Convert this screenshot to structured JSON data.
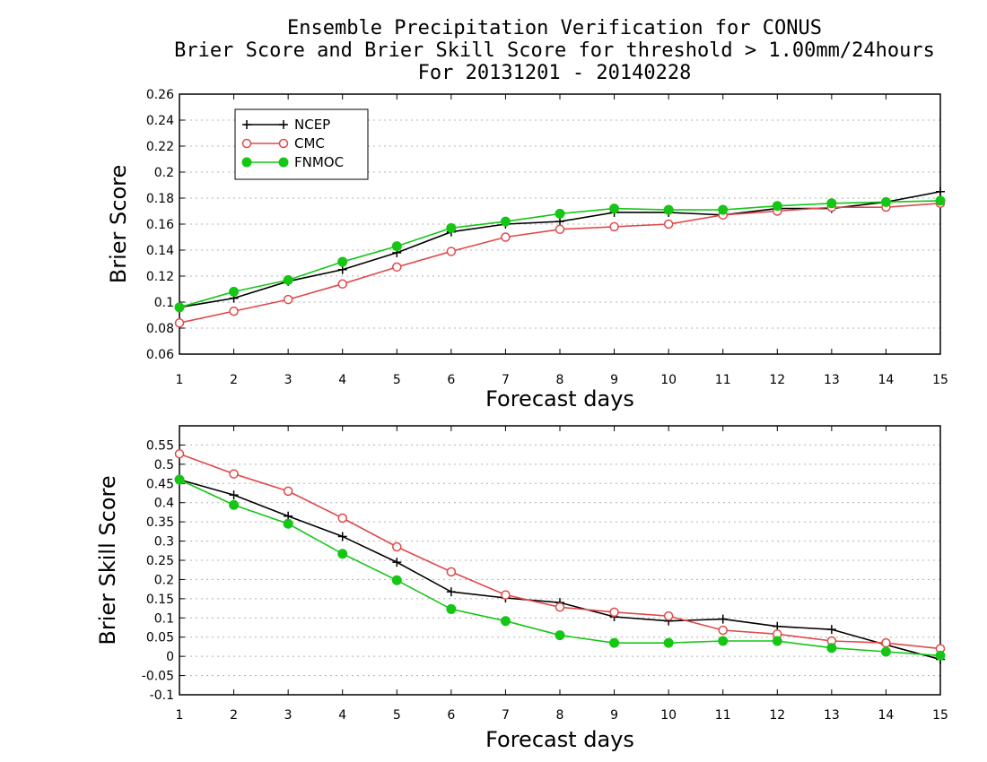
{
  "title_lines": [
    "Ensemble Precipitation Verification for CONUS",
    "Brier Score and Brier Skill Score for threshold > 1.00mm/24hours",
    "For 20131201 - 20140228"
  ],
  "colors": {
    "NCEP": "#000000",
    "CMC": "#e0494b",
    "FNMOC": "#15c615"
  },
  "chart_data": [
    {
      "type": "line",
      "xlabel": "Forecast days",
      "ylabel": "Brier Score",
      "x": [
        1,
        2,
        3,
        4,
        5,
        6,
        7,
        8,
        9,
        10,
        11,
        12,
        13,
        14,
        15
      ],
      "xlim": [
        1,
        15
      ],
      "ylim": [
        0.06,
        0.26
      ],
      "yticks": [
        0.06,
        0.08,
        0.1,
        0.12,
        0.14,
        0.16,
        0.18,
        0.2,
        0.22,
        0.24,
        0.26
      ],
      "ytick_labels": [
        "0.06",
        "0.08",
        "0.1",
        "0.12",
        "0.14",
        "0.16",
        "0.18",
        "0.2",
        "0.22",
        "0.24",
        "0.26"
      ],
      "grid": true,
      "legend": "top-left",
      "series": [
        {
          "name": "NCEP",
          "marker": "plus",
          "values": [
            0.096,
            0.103,
            0.116,
            0.125,
            0.138,
            0.154,
            0.16,
            0.162,
            0.169,
            0.169,
            0.167,
            0.172,
            0.172,
            0.177,
            0.185
          ]
        },
        {
          "name": "CMC",
          "marker": "open-circle",
          "values": [
            0.084,
            0.093,
            0.102,
            0.114,
            0.127,
            0.139,
            0.15,
            0.156,
            0.158,
            0.16,
            0.167,
            0.17,
            0.173,
            0.173,
            0.176
          ]
        },
        {
          "name": "FNMOC",
          "marker": "filled-circle",
          "values": [
            0.096,
            0.108,
            0.117,
            0.131,
            0.143,
            0.157,
            0.162,
            0.168,
            0.172,
            0.171,
            0.171,
            0.174,
            0.176,
            0.177,
            0.178
          ]
        }
      ]
    },
    {
      "type": "line",
      "xlabel": "Forecast days",
      "ylabel": "Brier Skill Score",
      "x": [
        1,
        2,
        3,
        4,
        5,
        6,
        7,
        8,
        9,
        10,
        11,
        12,
        13,
        14,
        15
      ],
      "xlim": [
        1,
        15
      ],
      "ylim": [
        -0.1,
        0.6
      ],
      "yticks": [
        -0.1,
        -0.05,
        0,
        0.05,
        0.1,
        0.15,
        0.2,
        0.25,
        0.3,
        0.35,
        0.4,
        0.45,
        0.5,
        0.55
      ],
      "ytick_labels": [
        "-0.1",
        "-0.05",
        "0",
        "0.05",
        "0.1",
        "0.15",
        "0.2",
        "0.25",
        "0.3",
        "0.35",
        "0.4",
        "0.45",
        "0.5",
        "0.55"
      ],
      "grid": true,
      "legend": "none",
      "series": [
        {
          "name": "NCEP",
          "marker": "plus",
          "values": [
            0.46,
            0.42,
            0.365,
            0.312,
            0.245,
            0.168,
            0.152,
            0.14,
            0.103,
            0.092,
            0.097,
            0.078,
            0.07,
            0.03,
            -0.008
          ]
        },
        {
          "name": "CMC",
          "marker": "open-circle",
          "values": [
            0.527,
            0.475,
            0.43,
            0.36,
            0.285,
            0.22,
            0.16,
            0.128,
            0.115,
            0.105,
            0.068,
            0.058,
            0.04,
            0.035,
            0.02
          ]
        },
        {
          "name": "FNMOC",
          "marker": "filled-circle",
          "values": [
            0.46,
            0.394,
            0.345,
            0.267,
            0.198,
            0.123,
            0.092,
            0.055,
            0.035,
            0.035,
            0.04,
            0.04,
            0.022,
            0.012,
            0.002
          ]
        }
      ]
    }
  ]
}
